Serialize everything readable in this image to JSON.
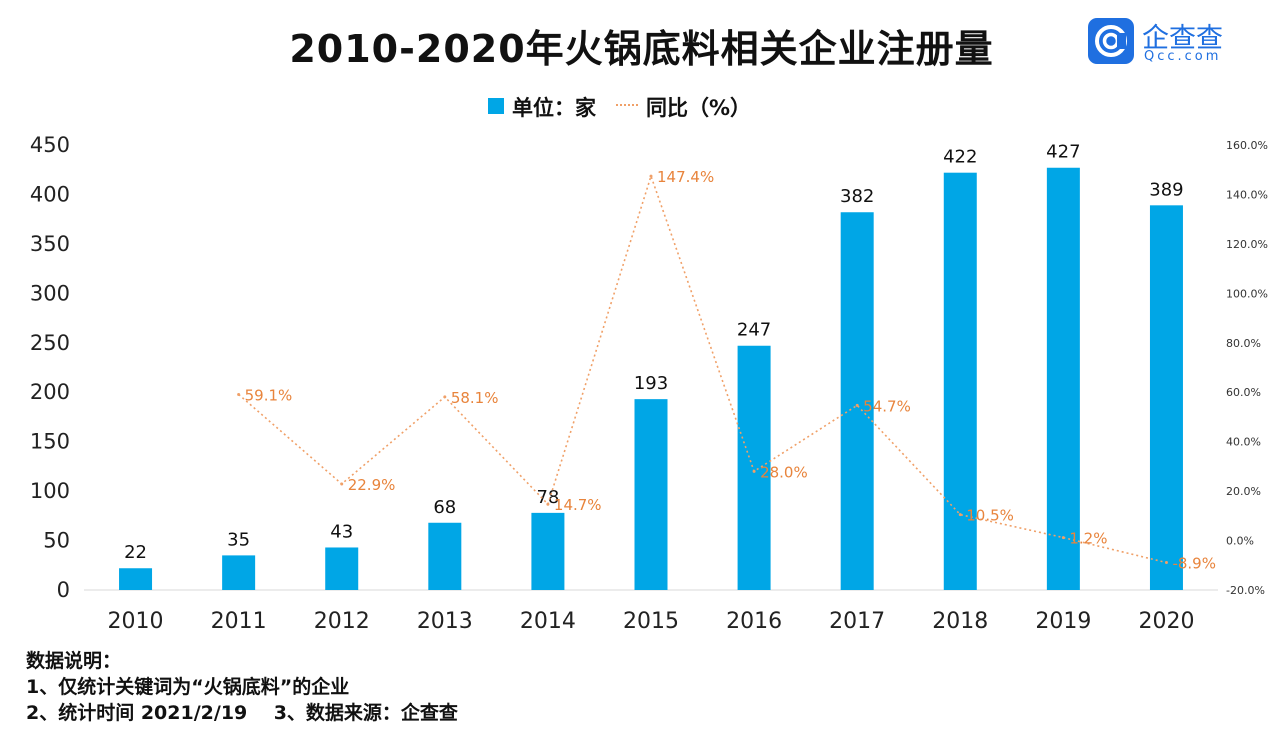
{
  "title": "2010-2020年火锅底料相关企业注册量",
  "brand": {
    "name": "企查查",
    "domain": "Qcc.com",
    "color": "#1f6fe0",
    "icon": "qcc-logo-icon"
  },
  "legend": [
    {
      "label": "单位：家",
      "type": "bar",
      "color": "#00a6e6"
    },
    {
      "label": "同比（%）",
      "type": "line",
      "color": "#f0a068"
    }
  ],
  "notes": {
    "heading": "数据说明：",
    "line1": "1、仅统计关键词为“火锅底料”的企业",
    "line2": "2、统计时间 2021/2/19    3、数据来源：企查查"
  },
  "chart_data": {
    "type": "bar",
    "categories": [
      "2010",
      "2011",
      "2012",
      "2013",
      "2014",
      "2015",
      "2016",
      "2017",
      "2018",
      "2019",
      "2020"
    ],
    "series": [
      {
        "name": "单位：家",
        "type": "bar",
        "axis": "left",
        "color": "#00a6e6",
        "values": [
          22,
          35,
          43,
          68,
          78,
          193,
          247,
          382,
          422,
          427,
          389
        ]
      },
      {
        "name": "同比（%）",
        "type": "line",
        "axis": "right",
        "color": "#f0a068",
        "values": [
          null,
          59.1,
          22.9,
          58.1,
          14.7,
          147.4,
          28.0,
          54.7,
          10.5,
          1.2,
          -8.9
        ],
        "labels": [
          "",
          "59.1%",
          "22.9%",
          "58.1%",
          "14.7%",
          "147.4%",
          "28.0%",
          "54.7%",
          "10.5%",
          "1.2%",
          "-8.9%"
        ]
      }
    ],
    "ylim": [
      0,
      450
    ],
    "yticks": [
      "0",
      "50",
      "100",
      "150",
      "200",
      "250",
      "300",
      "350",
      "400",
      "450"
    ],
    "y2lim": [
      -20,
      160
    ],
    "y2ticks": [
      "-20.0%",
      "0.0%",
      "20.0%",
      "40.0%",
      "60.0%",
      "80.0%",
      "100.0%",
      "120.0%",
      "140.0%",
      "160.0%"
    ],
    "grid": false,
    "legend_position": "top-center"
  }
}
